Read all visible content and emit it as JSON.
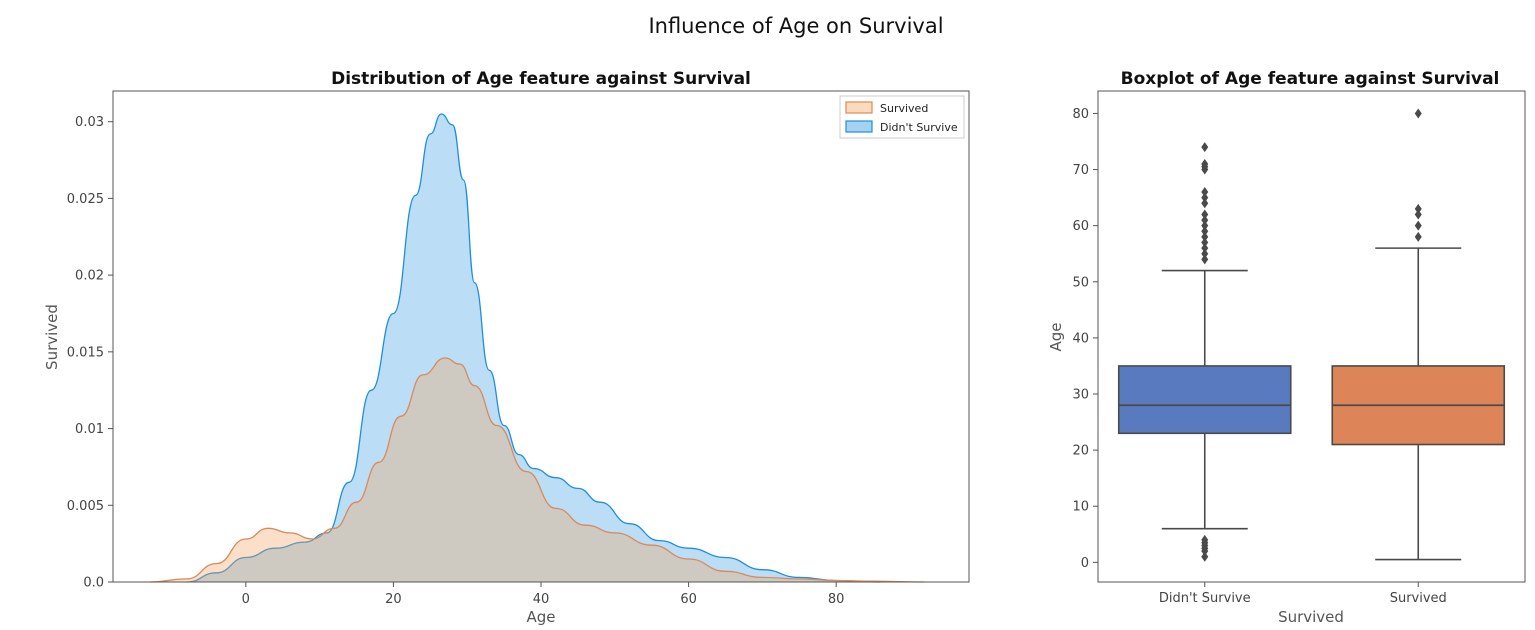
{
  "figure": {
    "title": "Influence of Age on Survival"
  },
  "chart_data": [
    {
      "type": "area",
      "title": "Distribution of Age feature against Survival",
      "xlabel": "Age",
      "ylabel": "Survived",
      "xlim": [
        -18,
        98
      ],
      "ylim": [
        0,
        0.032
      ],
      "x_ticks": [
        0,
        20,
        40,
        60,
        80
      ],
      "y_ticks": [
        0.0,
        0.005,
        0.01,
        0.015,
        0.02,
        0.025,
        0.03
      ],
      "y_tick_labels": [
        "0.0",
        "0.005",
        "0.01",
        "0.015",
        "0.02",
        "0.025",
        "0.03"
      ],
      "grid": false,
      "legend_position": "top-right",
      "series": [
        {
          "name": "Survived",
          "color": "#f4a261",
          "x": [
            -13,
            -8,
            -4,
            0,
            3,
            6,
            9,
            12,
            15,
            18,
            21,
            24,
            27,
            29,
            31,
            34,
            38,
            42,
            46,
            50,
            55,
            60,
            65,
            70,
            75,
            80,
            85,
            92
          ],
          "y": [
            0,
            0.0002,
            0.0012,
            0.0028,
            0.0035,
            0.0032,
            0.0028,
            0.0035,
            0.0052,
            0.0078,
            0.0108,
            0.0135,
            0.0146,
            0.0142,
            0.0128,
            0.0102,
            0.0072,
            0.0048,
            0.0037,
            0.0032,
            0.0024,
            0.0015,
            0.0007,
            0.0003,
            0.0002,
            0.0001,
            5e-05,
            0
          ]
        },
        {
          "name": "Didn't Survive",
          "color": "#1f8fdd",
          "x": [
            -8,
            -4,
            0,
            4,
            8,
            11,
            14,
            17,
            20,
            23,
            25,
            26.5,
            28,
            29.5,
            31,
            33,
            35,
            37,
            39,
            42,
            45,
            48,
            52,
            56,
            60,
            65,
            70,
            75,
            80,
            86
          ],
          "y": [
            0,
            0.0006,
            0.0016,
            0.0022,
            0.0026,
            0.0032,
            0.0065,
            0.0125,
            0.0175,
            0.0252,
            0.0292,
            0.0305,
            0.0298,
            0.0262,
            0.0195,
            0.0138,
            0.0102,
            0.0083,
            0.0074,
            0.0068,
            0.0061,
            0.0052,
            0.0038,
            0.0027,
            0.0022,
            0.0016,
            0.0008,
            0.0003,
            0.0001,
            0
          ]
        }
      ]
    },
    {
      "type": "box",
      "title": "Boxplot of Age feature against Survival",
      "xlabel": "Survived",
      "ylabel": "Age",
      "categories": [
        "Didn't Survive",
        "Survived"
      ],
      "ylim": [
        -3.5,
        84
      ],
      "y_ticks": [
        0,
        10,
        20,
        30,
        40,
        50,
        60,
        70,
        80
      ],
      "grid": false,
      "series": [
        {
          "name": "Didn't Survive",
          "color": "#5a7ac0",
          "whisker_low": 6,
          "q1": 23,
          "median": 28,
          "q3": 35,
          "whisker_high": 52,
          "outliers": [
            1,
            2,
            2.5,
            3,
            3.5,
            4,
            54,
            55,
            56,
            57,
            58,
            59,
            60,
            61,
            62,
            64,
            65,
            66,
            70,
            70.5,
            71,
            74
          ]
        },
        {
          "name": "Survived",
          "color": "#dd8558",
          "whisker_low": 0.5,
          "q1": 21,
          "median": 28,
          "q3": 35,
          "whisker_high": 56,
          "outliers": [
            58,
            60,
            62,
            63,
            80
          ]
        }
      ]
    }
  ]
}
